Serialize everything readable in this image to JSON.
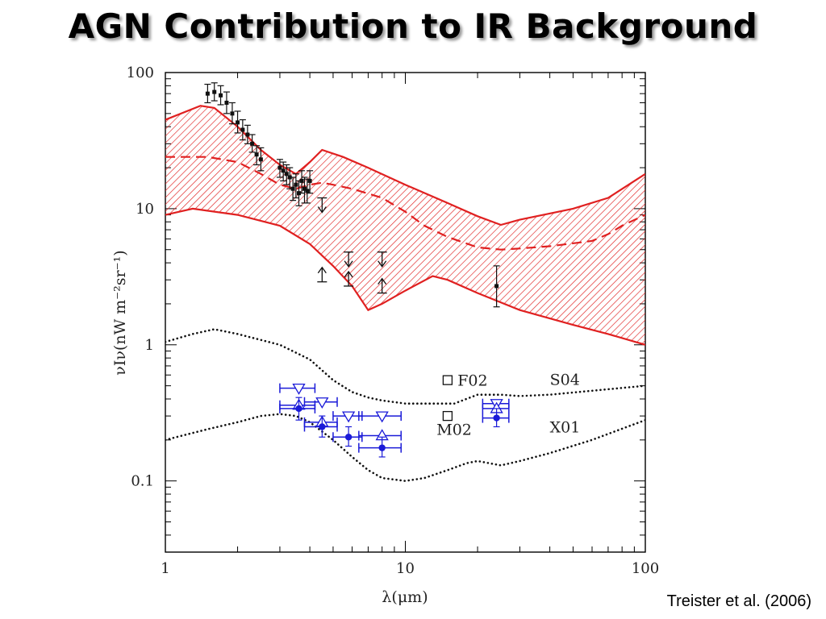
{
  "slide": {
    "title": "AGN Contribution to IR Background",
    "citation": "Treister et al. (2006)"
  },
  "chart_data": {
    "type": "line",
    "title": "",
    "xlabel": "λ(μm)",
    "ylabel": "νIν(nW m⁻²sr⁻¹)",
    "xscale": "log",
    "yscale": "log",
    "xlim": [
      1,
      100
    ],
    "ylim": [
      0.03,
      100
    ],
    "grid": false,
    "xticks": [
      {
        "v": 1,
        "label": "1"
      },
      {
        "v": 10,
        "label": "10"
      },
      {
        "v": 100,
        "label": "100"
      }
    ],
    "yticks": [
      {
        "v": 0.1,
        "label": "0.1"
      },
      {
        "v": 1,
        "label": "1"
      },
      {
        "v": 10,
        "label": "10"
      },
      {
        "v": 100,
        "label": "100"
      }
    ],
    "colors": {
      "band": "#e02020",
      "blue": "#1a1ad8",
      "black": "#111111"
    },
    "band": {
      "upper": [
        [
          1.0,
          45
        ],
        [
          1.4,
          57
        ],
        [
          1.6,
          55
        ],
        [
          2.0,
          40
        ],
        [
          2.5,
          27
        ],
        [
          3.0,
          21
        ],
        [
          3.5,
          18
        ],
        [
          4.0,
          22
        ],
        [
          4.5,
          27
        ],
        [
          5.5,
          24
        ],
        [
          7.0,
          20
        ],
        [
          10,
          15
        ],
        [
          15,
          11
        ],
        [
          20,
          8.8
        ],
        [
          25,
          7.6
        ],
        [
          30,
          8.3
        ],
        [
          50,
          10
        ],
        [
          70,
          12
        ],
        [
          100,
          18
        ]
      ],
      "lower": [
        [
          1.0,
          9
        ],
        [
          1.3,
          10
        ],
        [
          2.0,
          9
        ],
        [
          3.0,
          7.5
        ],
        [
          4.0,
          5.5
        ],
        [
          5.0,
          3.8
        ],
        [
          6.0,
          2.7
        ],
        [
          7.0,
          1.8
        ],
        [
          8.0,
          2.0
        ],
        [
          10,
          2.5
        ],
        [
          13,
          3.2
        ],
        [
          15,
          3.0
        ],
        [
          20,
          2.4
        ],
        [
          30,
          1.8
        ],
        [
          50,
          1.4
        ],
        [
          70,
          1.2
        ],
        [
          100,
          1.0
        ]
      ],
      "median": [
        [
          1.0,
          24
        ],
        [
          1.5,
          24
        ],
        [
          2.0,
          22
        ],
        [
          2.5,
          18
        ],
        [
          3.0,
          15
        ],
        [
          3.5,
          14
        ],
        [
          4.0,
          15
        ],
        [
          4.5,
          15.5
        ],
        [
          5.0,
          15
        ],
        [
          6.0,
          14
        ],
        [
          8.0,
          12
        ],
        [
          10,
          9.5
        ],
        [
          12,
          7.5
        ],
        [
          15,
          6.2
        ],
        [
          20,
          5.2
        ],
        [
          25,
          5.0
        ],
        [
          30,
          5.1
        ],
        [
          40,
          5.3
        ],
        [
          60,
          5.8
        ],
        [
          70,
          6.5
        ],
        [
          80,
          7.5
        ],
        [
          100,
          9.0
        ]
      ]
    },
    "series": [
      {
        "name": "S04",
        "style": "dotted",
        "points": [
          [
            1.0,
            1.05
          ],
          [
            1.3,
            1.2
          ],
          [
            1.6,
            1.3
          ],
          [
            2.0,
            1.2
          ],
          [
            3.0,
            1.0
          ],
          [
            4.0,
            0.78
          ],
          [
            5.0,
            0.55
          ],
          [
            6.0,
            0.45
          ],
          [
            7.0,
            0.41
          ],
          [
            8.0,
            0.39
          ],
          [
            10,
            0.37
          ],
          [
            13,
            0.37
          ],
          [
            16,
            0.37
          ],
          [
            20,
            0.43
          ],
          [
            25,
            0.43
          ],
          [
            30,
            0.42
          ],
          [
            40,
            0.43
          ],
          [
            60,
            0.46
          ],
          [
            100,
            0.5
          ]
        ]
      },
      {
        "name": "X01",
        "style": "dotted",
        "points": [
          [
            1.0,
            0.2
          ],
          [
            1.5,
            0.24
          ],
          [
            2.0,
            0.27
          ],
          [
            2.5,
            0.3
          ],
          [
            3.0,
            0.31
          ],
          [
            3.5,
            0.3
          ],
          [
            4.0,
            0.27
          ],
          [
            5.0,
            0.2
          ],
          [
            6.0,
            0.15
          ],
          [
            7.0,
            0.12
          ],
          [
            8.0,
            0.105
          ],
          [
            10,
            0.1
          ],
          [
            12,
            0.105
          ],
          [
            15,
            0.12
          ],
          [
            18,
            0.135
          ],
          [
            20,
            0.14
          ],
          [
            25,
            0.13
          ],
          [
            30,
            0.14
          ],
          [
            40,
            0.16
          ],
          [
            60,
            0.2
          ],
          [
            100,
            0.28
          ]
        ]
      }
    ],
    "black_points": [
      {
        "x": 1.5,
        "y": 70,
        "lo": 60,
        "hi": 82
      },
      {
        "x": 1.6,
        "y": 72,
        "lo": 62,
        "hi": 84
      },
      {
        "x": 1.7,
        "y": 68,
        "lo": 58,
        "hi": 80
      },
      {
        "x": 1.8,
        "y": 60,
        "lo": 50,
        "hi": 72
      },
      {
        "x": 1.9,
        "y": 50,
        "lo": 42,
        "hi": 60
      },
      {
        "x": 2.0,
        "y": 43,
        "lo": 36,
        "hi": 52
      },
      {
        "x": 2.1,
        "y": 38,
        "lo": 32,
        "hi": 45
      },
      {
        "x": 2.2,
        "y": 35,
        "lo": 30,
        "hi": 41
      },
      {
        "x": 2.3,
        "y": 30,
        "lo": 26,
        "hi": 35
      },
      {
        "x": 2.4,
        "y": 25,
        "lo": 21,
        "hi": 29
      },
      {
        "x": 2.5,
        "y": 23,
        "lo": 19,
        "hi": 28
      },
      {
        "x": 3.0,
        "y": 20,
        "lo": 17,
        "hi": 23
      },
      {
        "x": 3.1,
        "y": 19,
        "lo": 16,
        "hi": 22
      },
      {
        "x": 3.2,
        "y": 18,
        "lo": 15,
        "hi": 21
      },
      {
        "x": 3.3,
        "y": 17,
        "lo": 14,
        "hi": 20
      },
      {
        "x": 3.4,
        "y": 14,
        "lo": 11.5,
        "hi": 17
      },
      {
        "x": 3.5,
        "y": 15,
        "lo": 12,
        "hi": 18
      },
      {
        "x": 3.6,
        "y": 13,
        "lo": 10.5,
        "hi": 16
      },
      {
        "x": 3.7,
        "y": 16,
        "lo": 13,
        "hi": 19
      },
      {
        "x": 3.8,
        "y": 14,
        "lo": 11,
        "hi": 17
      },
      {
        "x": 3.9,
        "y": 13.5,
        "lo": 11,
        "hi": 16.5
      },
      {
        "x": 4.0,
        "y": 16,
        "lo": 13,
        "hi": 19
      },
      {
        "x": 24,
        "y": 2.7,
        "lo": 1.9,
        "hi": 3.8
      }
    ],
    "limits": [
      {
        "x": 4.5,
        "y": 12,
        "dir": "down"
      },
      {
        "x": 4.5,
        "y": 2.9,
        "dir": "up"
      },
      {
        "x": 5.8,
        "y": 4.8,
        "dir": "down"
      },
      {
        "x": 5.8,
        "y": 2.7,
        "dir": "up"
      },
      {
        "x": 8.0,
        "y": 4.8,
        "dir": "down"
      },
      {
        "x": 8.0,
        "y": 2.4,
        "dir": "up"
      }
    ],
    "blue_filled": [
      {
        "x": 3.6,
        "y": 0.34,
        "xlo": 3.0,
        "xhi": 4.2,
        "lo": 0.28,
        "hi": 0.41
      },
      {
        "x": 4.5,
        "y": 0.25,
        "xlo": 3.8,
        "xhi": 5.2,
        "lo": 0.21,
        "hi": 0.3
      },
      {
        "x": 5.8,
        "y": 0.21,
        "xlo": 5.0,
        "xhi": 6.6,
        "lo": 0.18,
        "hi": 0.25
      },
      {
        "x": 8.0,
        "y": 0.175,
        "xlo": 6.4,
        "xhi": 9.6,
        "lo": 0.15,
        "hi": 0.21
      },
      {
        "x": 24,
        "y": 0.29,
        "xlo": 21,
        "xhi": 27,
        "lo": 0.25,
        "hi": 0.34
      }
    ],
    "blue_open_up": [
      {
        "x": 3.6,
        "y": 0.36,
        "xlo": 3.0,
        "xhi": 4.2
      },
      {
        "x": 4.5,
        "y": 0.27,
        "xlo": 3.8,
        "xhi": 5.2
      },
      {
        "x": 8.0,
        "y": 0.215,
        "xlo": 6.4,
        "xhi": 9.6
      },
      {
        "x": 24,
        "y": 0.34,
        "xlo": 21,
        "xhi": 27
      }
    ],
    "blue_open_down": [
      {
        "x": 3.6,
        "y": 0.48,
        "xlo": 3.0,
        "xhi": 4.2
      },
      {
        "x": 4.5,
        "y": 0.38,
        "xlo": 3.8,
        "xhi": 5.2
      },
      {
        "x": 5.8,
        "y": 0.3,
        "xlo": 5.0,
        "xhi": 6.6
      },
      {
        "x": 8.0,
        "y": 0.3,
        "xlo": 6.4,
        "xhi": 9.6
      },
      {
        "x": 24,
        "y": 0.37,
        "xlo": 21,
        "xhi": 27
      }
    ],
    "open_squares": [
      {
        "x": 15,
        "y": 0.55
      },
      {
        "x": 15,
        "y": 0.3
      }
    ],
    "annotations": [
      {
        "text": "F02",
        "x": 16.5,
        "y": 0.55
      },
      {
        "text": "M02",
        "x": 13.5,
        "y": 0.24
      },
      {
        "text": "S04",
        "x": 40,
        "y": 0.56
      },
      {
        "text": "X01",
        "x": 40,
        "y": 0.25
      }
    ]
  }
}
